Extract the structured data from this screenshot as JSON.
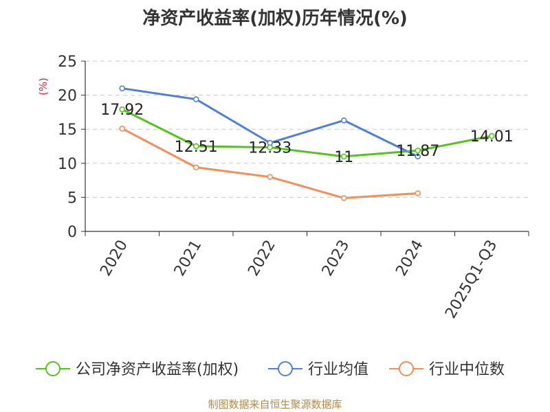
{
  "chart_data": {
    "type": "line",
    "title": "净资产收益率(加权)历年情况(%)",
    "ylabel": "(%)",
    "xlabel": "",
    "ylim": [
      0,
      25
    ],
    "yticks": [
      0,
      5,
      10,
      15,
      20,
      25
    ],
    "grid": true,
    "categories": [
      "2020",
      "2021",
      "2022",
      "2023",
      "2024",
      "2025Q1-Q3"
    ],
    "series": [
      {
        "name": "公司净资产收益率(加权)",
        "color": "#52c41a",
        "values": [
          17.92,
          12.51,
          12.33,
          11,
          11.87,
          14.01
        ],
        "labels": [
          "17.92",
          "12.51",
          "12.33",
          "11",
          "11.87",
          "14.01"
        ]
      },
      {
        "name": "行业均值",
        "color": "#4e7fdb",
        "values": [
          21.0,
          19.4,
          13.0,
          16.3,
          11.0,
          null
        ]
      },
      {
        "name": "行业中位数",
        "color": "#f58d56",
        "values": [
          15.1,
          9.4,
          8.0,
          4.9,
          5.6,
          null
        ]
      }
    ],
    "legend_position": "bottom"
  },
  "source_text": "制图数据来自恒生聚源数据库"
}
